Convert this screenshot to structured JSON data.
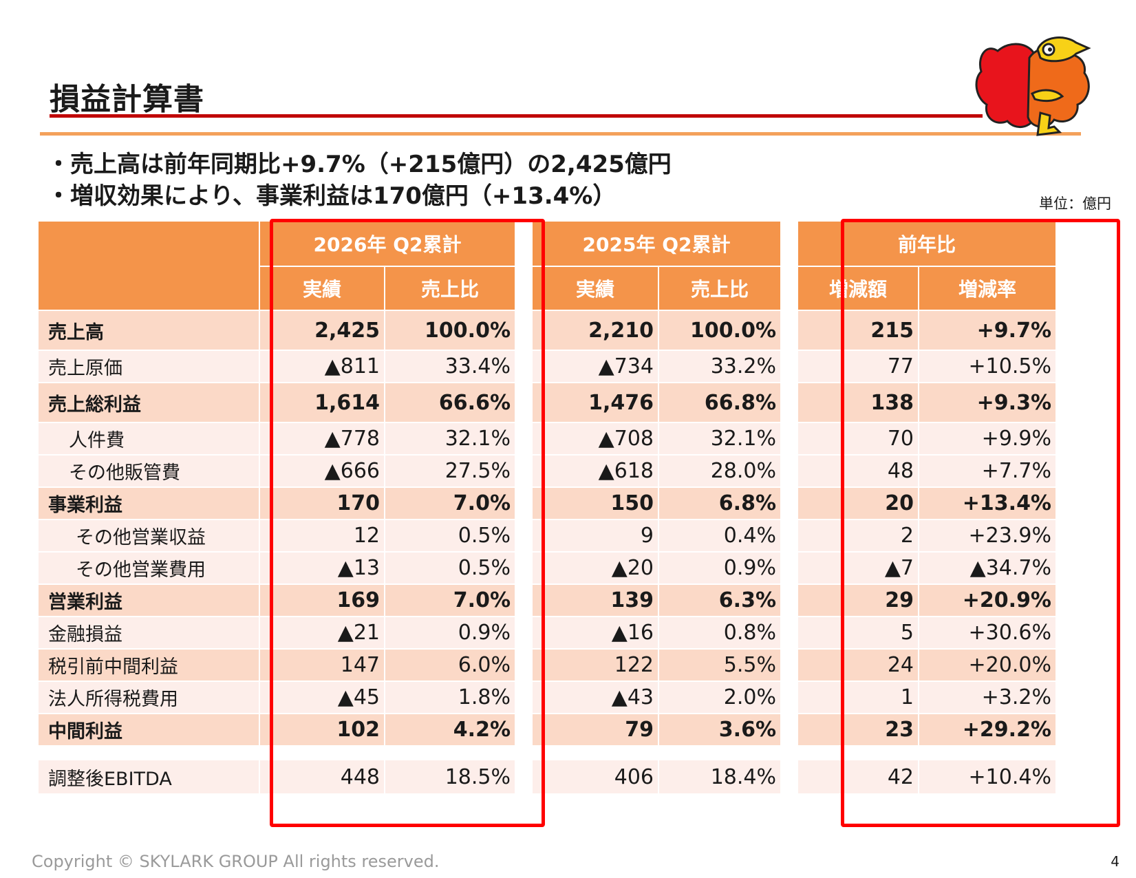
{
  "title": "損益計算書",
  "bullets": [
    "・売上高は前年同期比+9.7%（+215億円）の2,425億円",
    "・増収効果により、事業利益は170億円（+13.4%）"
  ],
  "unit_label": "単位：億円",
  "table": {
    "group_headers": [
      "2026年 Q2累計",
      "2025年 Q2累計",
      "前年比"
    ],
    "sub_headers": [
      "実績",
      "売上比",
      "実績",
      "売上比",
      "増減額",
      "増減率"
    ],
    "rows": [
      {
        "label": "売上高",
        "cells": [
          "2,425",
          "100.0%",
          "2,210",
          "100.0%",
          "215",
          "+9.7%"
        ]
      },
      {
        "label": "売上原価",
        "cells": [
          "▲811",
          "33.4%",
          "▲734",
          "33.2%",
          "77",
          "+10.5%"
        ]
      },
      {
        "label": "売上総利益",
        "cells": [
          "1,614",
          "66.6%",
          "1,476",
          "66.8%",
          "138",
          "+9.3%"
        ]
      },
      {
        "label": "人件費",
        "cells": [
          "▲778",
          "32.1%",
          "▲708",
          "32.1%",
          "70",
          "+9.9%"
        ]
      },
      {
        "label": "その他販管費",
        "cells": [
          "▲666",
          "27.5%",
          "▲618",
          "28.0%",
          "48",
          "+7.7%"
        ]
      },
      {
        "label": "事業利益",
        "cells": [
          "170",
          "7.0%",
          "150",
          "6.8%",
          "20",
          "+13.4%"
        ]
      },
      {
        "label": "その他営業収益",
        "cells": [
          "12",
          "0.5%",
          "9",
          "0.4%",
          "2",
          "+23.9%"
        ]
      },
      {
        "label": "その他営業費用",
        "cells": [
          "▲13",
          "0.5%",
          "▲20",
          "0.9%",
          "▲7",
          "▲34.7%"
        ]
      },
      {
        "label": "営業利益",
        "cells": [
          "169",
          "7.0%",
          "139",
          "6.3%",
          "29",
          "+20.9%"
        ]
      },
      {
        "label": "金融損益",
        "cells": [
          "▲21",
          "0.9%",
          "▲16",
          "0.8%",
          "5",
          "+30.6%"
        ]
      },
      {
        "label": "税引前中間利益",
        "cells": [
          "147",
          "6.0%",
          "122",
          "5.5%",
          "24",
          "+20.0%"
        ]
      },
      {
        "label": "法人所得税費用",
        "cells": [
          "▲45",
          "1.8%",
          "▲43",
          "2.0%",
          "1",
          "+3.2%"
        ]
      },
      {
        "label": "中間利益",
        "cells": [
          "102",
          "4.2%",
          "79",
          "3.6%",
          "23",
          "+29.2%"
        ]
      },
      {
        "label": "調整後EBITDA",
        "cells": [
          "448",
          "18.5%",
          "406",
          "18.4%",
          "42",
          "+10.4%"
        ]
      }
    ]
  },
  "mascot_icon": "bird-mascot",
  "colors": {
    "header_orange": "#f4944a",
    "row_dark": "#fbd9c7",
    "row_light": "#fdeeea",
    "highlight_red": "#ff0000",
    "title_rule_red": "#c00000",
    "rule_orange": "#f4a15b"
  },
  "footer": {
    "copyright": "Copyright © SKYLARK GROUP All rights reserved.",
    "page_number": "4"
  }
}
